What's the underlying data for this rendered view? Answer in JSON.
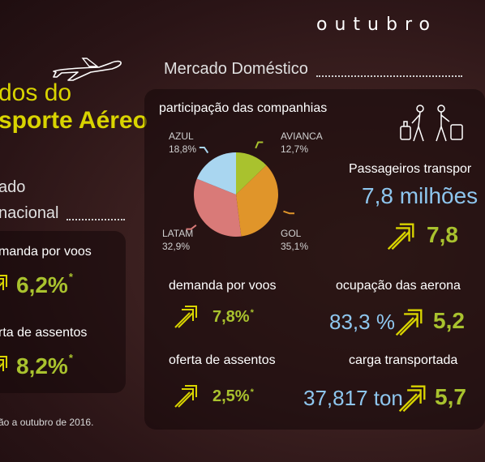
{
  "header": {
    "month": "outubro"
  },
  "title": {
    "line1": "dos do",
    "line2": "sporte Aéreo"
  },
  "domestic": {
    "section_title": "Mercado Doméstico",
    "share_title": "participação das companhias",
    "passengers_label": "Passageiros transpor",
    "passengers_value": "7,8 milhões",
    "passengers_growth": "7,8",
    "demand_label": "demanda por voos",
    "demand_value": "7,8%",
    "supply_label": "oferta de assentos",
    "supply_value": "2,5%",
    "occupancy_label": "ocupação das aerona",
    "occupancy_value": "83,3 %",
    "occupancy_growth": "5,2",
    "cargo_label": "carga transportada",
    "cargo_value": "37,817 ton",
    "cargo_growth": "5,7",
    "asterisk": "*"
  },
  "international": {
    "section_line1": "ado",
    "section_line2": "nacional",
    "demand_label": "manda por voos",
    "demand_value": "6,2%",
    "supply_label": "rta de assentos",
    "supply_value": "8,2%",
    "asterisk": "*"
  },
  "footnote": "ão a outubro de 2016.",
  "colors": {
    "azul": "#a9d6f0",
    "avianca": "#a9c22e",
    "gol": "#e0952a",
    "latam": "#d97a78",
    "accent_green": "#a9c22e",
    "accent_blue": "#8ec6ee",
    "title_yellow": "#d9d400"
  },
  "chart_data": {
    "type": "pie",
    "title": "participação das companhias",
    "categories": [
      "AZUL",
      "AVIANCA",
      "GOL",
      "LATAM"
    ],
    "labels": [
      "18,8%",
      "12,7%",
      "35,1%",
      "32,9%"
    ],
    "values": [
      18.8,
      12.7,
      35.1,
      32.9
    ],
    "colors": [
      "#a9d6f0",
      "#a9c22e",
      "#e0952a",
      "#d97a78"
    ]
  }
}
